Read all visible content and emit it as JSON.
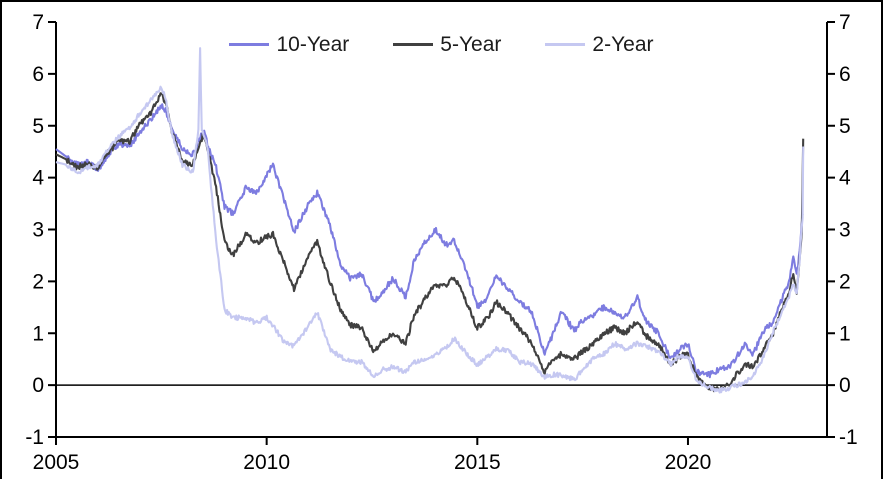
{
  "chart_data": {
    "type": "line",
    "title": "",
    "xlabel": "",
    "ylabel": "",
    "xlim": [
      2005,
      2023.3
    ],
    "ylim": [
      -1,
      7
    ],
    "yticks": [
      -1,
      0,
      1,
      2,
      3,
      4,
      5,
      6,
      7
    ],
    "xticks": [
      2005,
      2010,
      2015,
      2020
    ],
    "grid": false,
    "zero_line": true,
    "dual_y_axis": true,
    "legend_position": "top-center",
    "background": "#ffffff",
    "axis_color": "#000000",
    "series": [
      {
        "name": "10-Year",
        "color": "#7d7ce0",
        "points": [
          [
            2005.0,
            4.55
          ],
          [
            2005.25,
            4.4
          ],
          [
            2005.5,
            4.25
          ],
          [
            2005.75,
            4.3
          ],
          [
            2006.0,
            4.15
          ],
          [
            2006.25,
            4.45
          ],
          [
            2006.5,
            4.65
          ],
          [
            2006.75,
            4.6
          ],
          [
            2007.0,
            4.9
          ],
          [
            2007.25,
            5.1
          ],
          [
            2007.5,
            5.4
          ],
          [
            2007.6,
            5.3
          ],
          [
            2007.75,
            4.95
          ],
          [
            2008.0,
            4.55
          ],
          [
            2008.25,
            4.45
          ],
          [
            2008.5,
            4.9
          ],
          [
            2008.65,
            4.5
          ],
          [
            2008.8,
            4.2
          ],
          [
            2009.0,
            3.45
          ],
          [
            2009.2,
            3.3
          ],
          [
            2009.5,
            3.8
          ],
          [
            2009.75,
            3.7
          ],
          [
            2010.0,
            4.05
          ],
          [
            2010.15,
            4.25
          ],
          [
            2010.4,
            3.6
          ],
          [
            2010.65,
            2.95
          ],
          [
            2011.0,
            3.5
          ],
          [
            2011.2,
            3.7
          ],
          [
            2011.5,
            3.1
          ],
          [
            2011.75,
            2.3
          ],
          [
            2012.0,
            2.05
          ],
          [
            2012.25,
            2.15
          ],
          [
            2012.55,
            1.6
          ],
          [
            2012.75,
            1.8
          ],
          [
            2013.0,
            2.05
          ],
          [
            2013.3,
            1.7
          ],
          [
            2013.5,
            2.4
          ],
          [
            2013.75,
            2.75
          ],
          [
            2014.0,
            3.0
          ],
          [
            2014.25,
            2.7
          ],
          [
            2014.45,
            2.8
          ],
          [
            2014.75,
            2.2
          ],
          [
            2015.0,
            1.5
          ],
          [
            2015.25,
            1.7
          ],
          [
            2015.45,
            2.1
          ],
          [
            2015.75,
            1.85
          ],
          [
            2016.0,
            1.6
          ],
          [
            2016.3,
            1.4
          ],
          [
            2016.6,
            0.6
          ],
          [
            2016.8,
            1.0
          ],
          [
            2017.0,
            1.4
          ],
          [
            2017.3,
            1.05
          ],
          [
            2017.5,
            1.25
          ],
          [
            2017.75,
            1.35
          ],
          [
            2018.0,
            1.5
          ],
          [
            2018.25,
            1.4
          ],
          [
            2018.5,
            1.3
          ],
          [
            2018.8,
            1.7
          ],
          [
            2019.0,
            1.25
          ],
          [
            2019.3,
            1.0
          ],
          [
            2019.6,
            0.5
          ],
          [
            2019.8,
            0.7
          ],
          [
            2020.0,
            0.8
          ],
          [
            2020.2,
            0.25
          ],
          [
            2020.5,
            0.2
          ],
          [
            2020.75,
            0.3
          ],
          [
            2021.0,
            0.35
          ],
          [
            2021.35,
            0.8
          ],
          [
            2021.55,
            0.6
          ],
          [
            2021.8,
            1.05
          ],
          [
            2022.0,
            1.2
          ],
          [
            2022.2,
            1.6
          ],
          [
            2022.4,
            2.0
          ],
          [
            2022.5,
            2.5
          ],
          [
            2022.58,
            2.1
          ],
          [
            2022.65,
            2.55
          ],
          [
            2022.72,
            3.3
          ]
        ]
      },
      {
        "name": "5-Year",
        "color": "#404040",
        "points": [
          [
            2005.0,
            4.45
          ],
          [
            2005.25,
            4.35
          ],
          [
            2005.5,
            4.2
          ],
          [
            2005.75,
            4.25
          ],
          [
            2006.0,
            4.2
          ],
          [
            2006.25,
            4.5
          ],
          [
            2006.5,
            4.7
          ],
          [
            2006.75,
            4.7
          ],
          [
            2007.0,
            5.05
          ],
          [
            2007.25,
            5.25
          ],
          [
            2007.5,
            5.6
          ],
          [
            2007.6,
            5.45
          ],
          [
            2007.75,
            4.9
          ],
          [
            2008.0,
            4.3
          ],
          [
            2008.25,
            4.25
          ],
          [
            2008.5,
            4.85
          ],
          [
            2008.65,
            4.35
          ],
          [
            2008.8,
            3.8
          ],
          [
            2009.0,
            2.75
          ],
          [
            2009.2,
            2.5
          ],
          [
            2009.5,
            2.9
          ],
          [
            2009.75,
            2.75
          ],
          [
            2010.0,
            2.85
          ],
          [
            2010.15,
            2.9
          ],
          [
            2010.4,
            2.4
          ],
          [
            2010.65,
            1.85
          ],
          [
            2011.0,
            2.5
          ],
          [
            2011.2,
            2.75
          ],
          [
            2011.5,
            2.0
          ],
          [
            2011.75,
            1.45
          ],
          [
            2012.0,
            1.15
          ],
          [
            2012.25,
            1.1
          ],
          [
            2012.55,
            0.65
          ],
          [
            2012.75,
            0.85
          ],
          [
            2013.0,
            1.0
          ],
          [
            2013.3,
            0.8
          ],
          [
            2013.5,
            1.35
          ],
          [
            2013.75,
            1.65
          ],
          [
            2014.0,
            1.95
          ],
          [
            2014.25,
            1.9
          ],
          [
            2014.45,
            2.1
          ],
          [
            2014.75,
            1.6
          ],
          [
            2015.0,
            1.1
          ],
          [
            2015.25,
            1.3
          ],
          [
            2015.45,
            1.6
          ],
          [
            2015.75,
            1.35
          ],
          [
            2016.0,
            1.1
          ],
          [
            2016.3,
            0.8
          ],
          [
            2016.6,
            0.25
          ],
          [
            2016.8,
            0.5
          ],
          [
            2017.0,
            0.6
          ],
          [
            2017.3,
            0.5
          ],
          [
            2017.5,
            0.65
          ],
          [
            2017.75,
            0.8
          ],
          [
            2018.0,
            1.0
          ],
          [
            2018.25,
            1.1
          ],
          [
            2018.5,
            1.0
          ],
          [
            2018.8,
            1.25
          ],
          [
            2019.0,
            0.95
          ],
          [
            2019.3,
            0.8
          ],
          [
            2019.6,
            0.4
          ],
          [
            2019.8,
            0.55
          ],
          [
            2020.0,
            0.6
          ],
          [
            2020.2,
            0.15
          ],
          [
            2020.5,
            -0.05
          ],
          [
            2020.75,
            -0.1
          ],
          [
            2021.0,
            0.05
          ],
          [
            2021.35,
            0.4
          ],
          [
            2021.55,
            0.35
          ],
          [
            2021.8,
            0.7
          ],
          [
            2022.0,
            0.95
          ],
          [
            2022.2,
            1.4
          ],
          [
            2022.4,
            1.8
          ],
          [
            2022.5,
            2.15
          ],
          [
            2022.58,
            1.8
          ],
          [
            2022.65,
            2.4
          ],
          [
            2022.7,
            2.95
          ],
          [
            2022.735,
            4.75
          ]
        ]
      },
      {
        "name": "2-Year",
        "color": "#c5c8f1",
        "points": [
          [
            2005.0,
            4.3
          ],
          [
            2005.25,
            4.25
          ],
          [
            2005.5,
            4.1
          ],
          [
            2005.75,
            4.2
          ],
          [
            2006.0,
            4.25
          ],
          [
            2006.25,
            4.55
          ],
          [
            2006.5,
            4.8
          ],
          [
            2006.75,
            4.95
          ],
          [
            2007.0,
            5.25
          ],
          [
            2007.25,
            5.5
          ],
          [
            2007.5,
            5.75
          ],
          [
            2007.6,
            5.55
          ],
          [
            2007.75,
            4.85
          ],
          [
            2008.0,
            4.25
          ],
          [
            2008.25,
            4.1
          ],
          [
            2008.38,
            4.95
          ],
          [
            2008.42,
            6.45
          ],
          [
            2008.46,
            4.95
          ],
          [
            2008.6,
            4.55
          ],
          [
            2008.8,
            2.8
          ],
          [
            2009.0,
            1.45
          ],
          [
            2009.2,
            1.3
          ],
          [
            2009.5,
            1.3
          ],
          [
            2009.75,
            1.2
          ],
          [
            2010.0,
            1.3
          ],
          [
            2010.15,
            1.15
          ],
          [
            2010.4,
            0.85
          ],
          [
            2010.65,
            0.75
          ],
          [
            2011.0,
            1.15
          ],
          [
            2011.2,
            1.4
          ],
          [
            2011.5,
            0.7
          ],
          [
            2011.75,
            0.55
          ],
          [
            2012.0,
            0.45
          ],
          [
            2012.25,
            0.45
          ],
          [
            2012.55,
            0.15
          ],
          [
            2012.75,
            0.3
          ],
          [
            2013.0,
            0.35
          ],
          [
            2013.3,
            0.25
          ],
          [
            2013.5,
            0.45
          ],
          [
            2013.75,
            0.5
          ],
          [
            2014.0,
            0.6
          ],
          [
            2014.25,
            0.7
          ],
          [
            2014.45,
            0.9
          ],
          [
            2014.75,
            0.6
          ],
          [
            2015.0,
            0.4
          ],
          [
            2015.25,
            0.55
          ],
          [
            2015.45,
            0.7
          ],
          [
            2015.75,
            0.65
          ],
          [
            2016.0,
            0.45
          ],
          [
            2016.3,
            0.4
          ],
          [
            2016.6,
            0.15
          ],
          [
            2016.8,
            0.2
          ],
          [
            2017.0,
            0.2
          ],
          [
            2017.3,
            0.1
          ],
          [
            2017.5,
            0.3
          ],
          [
            2017.75,
            0.5
          ],
          [
            2018.0,
            0.6
          ],
          [
            2018.25,
            0.8
          ],
          [
            2018.5,
            0.7
          ],
          [
            2018.8,
            0.8
          ],
          [
            2019.0,
            0.75
          ],
          [
            2019.3,
            0.65
          ],
          [
            2019.6,
            0.4
          ],
          [
            2019.8,
            0.55
          ],
          [
            2020.0,
            0.55
          ],
          [
            2020.2,
            0.1
          ],
          [
            2020.5,
            -0.05
          ],
          [
            2020.75,
            -0.1
          ],
          [
            2021.0,
            -0.05
          ],
          [
            2021.35,
            0.05
          ],
          [
            2021.55,
            0.2
          ],
          [
            2021.8,
            0.55
          ],
          [
            2022.0,
            1.0
          ],
          [
            2022.2,
            1.35
          ],
          [
            2022.4,
            1.7
          ],
          [
            2022.5,
            1.95
          ],
          [
            2022.58,
            1.75
          ],
          [
            2022.65,
            2.4
          ],
          [
            2022.7,
            3.05
          ],
          [
            2022.72,
            3.25
          ],
          [
            2022.735,
            4.6
          ]
        ]
      }
    ]
  }
}
